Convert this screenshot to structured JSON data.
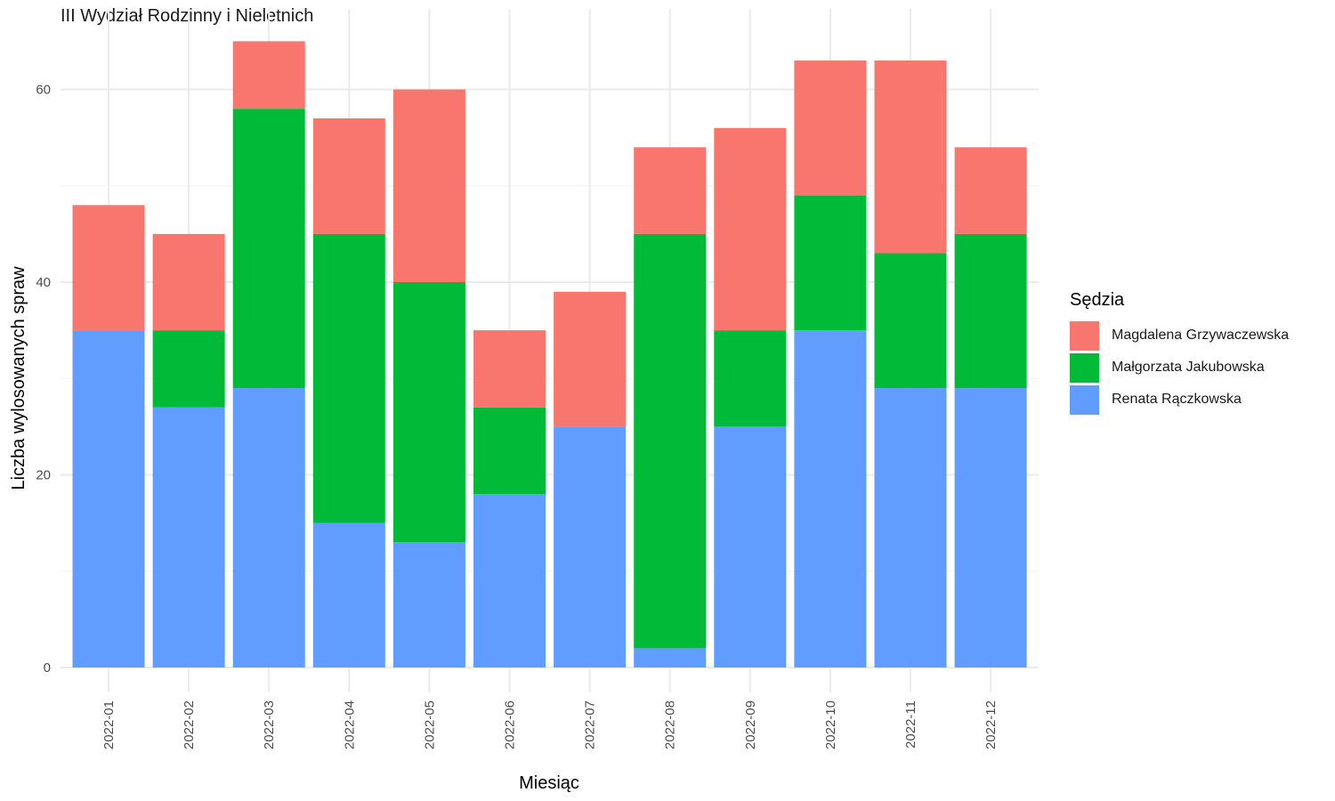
{
  "chart_data": {
    "type": "bar",
    "stacked": true,
    "title": "III Wydział Rodzinny i Nieletnich",
    "xlabel": "Miesiąc",
    "ylabel": "Liczba wylosowanych spraw",
    "ylim": [
      0,
      67
    ],
    "yticks": [
      0,
      20,
      40,
      60
    ],
    "grid": true,
    "legend_position": "right",
    "legend_title": "Sędzia",
    "categories": [
      "2022-01",
      "2022-02",
      "2022-03",
      "2022-04",
      "2022-05",
      "2022-06",
      "2022-07",
      "2022-08",
      "2022-09",
      "2022-10",
      "2022-11",
      "2022-12"
    ],
    "series": [
      {
        "name": "Renata Rączkowska",
        "color": "#619CFF",
        "values": [
          35,
          27,
          29,
          15,
          13,
          18,
          25,
          2,
          25,
          35,
          29,
          29
        ]
      },
      {
        "name": "Małgorzata Jakubowska",
        "color": "#00BA38",
        "values": [
          0,
          8,
          29,
          30,
          27,
          9,
          0,
          43,
          10,
          14,
          14,
          16
        ]
      },
      {
        "name": "Magdalena Grzywaczewska",
        "color": "#F8766D",
        "values": [
          13,
          10,
          7,
          12,
          20,
          8,
          14,
          9,
          21,
          14,
          20,
          9
        ]
      }
    ],
    "legend_order": [
      "Magdalena Grzywaczewska",
      "Małgorzata Jakubowska",
      "Renata Rączkowska"
    ]
  }
}
